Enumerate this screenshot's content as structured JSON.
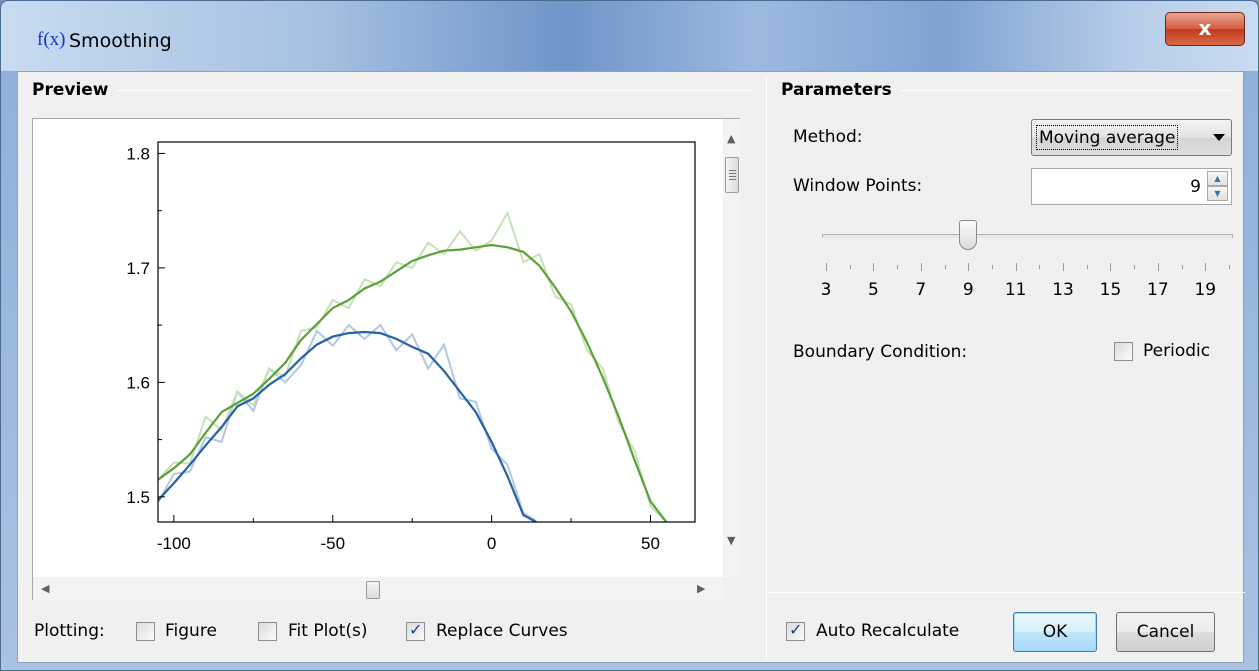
{
  "window": {
    "icon": "f(x)",
    "title": "Smoothing",
    "close": "x"
  },
  "preview": {
    "title": "Preview"
  },
  "chart_data": {
    "type": "line",
    "xlim": [
      -105,
      64
    ],
    "ylim": [
      1.478,
      1.81
    ],
    "x_ticks": [
      -100,
      -50,
      0,
      50
    ],
    "x_tick_labels": [
      "-100",
      "-50",
      "0",
      "50"
    ],
    "y_ticks": [
      1.5,
      1.6,
      1.7,
      1.8
    ],
    "y_tick_labels": [
      "1.5",
      "1.6",
      "1.7",
      "1.8"
    ],
    "series": [
      {
        "color": "#2461a8",
        "raw_color": "#b3c7df",
        "x": [
          -105,
          -100,
          -95,
          -90,
          -85,
          -80,
          -75,
          -70,
          -65,
          -60,
          -55,
          -50,
          -45,
          -40,
          -35,
          -30,
          -25,
          -20,
          -15,
          -10,
          -5,
          0,
          5,
          10,
          14
        ],
        "smoothed": [
          1.497,
          1.512,
          1.528,
          1.545,
          1.561,
          1.579,
          1.586,
          1.598,
          1.607,
          1.621,
          1.633,
          1.64,
          1.643,
          1.644,
          1.643,
          1.638,
          1.631,
          1.625,
          1.61,
          1.592,
          1.574,
          1.548,
          1.518,
          1.484,
          1.478
        ],
        "raw": [
          1.495,
          1.52,
          1.522,
          1.552,
          1.548,
          1.592,
          1.575,
          1.612,
          1.6,
          1.615,
          1.645,
          1.632,
          1.65,
          1.638,
          1.65,
          1.628,
          1.642,
          1.612,
          1.633,
          1.586,
          1.583,
          1.542,
          1.528,
          1.486,
          1.479
        ]
      },
      {
        "color": "#5aa238",
        "raw_color": "#c6e1b7",
        "x": [
          -105,
          -100,
          -95,
          -90,
          -85,
          -80,
          -75,
          -70,
          -65,
          -60,
          -55,
          -50,
          -45,
          -40,
          -35,
          -30,
          -25,
          -20,
          -15,
          -10,
          -5,
          0,
          5,
          10,
          15,
          20,
          25,
          30,
          35,
          40,
          45,
          50,
          55
        ],
        "smoothed": [
          1.515,
          1.525,
          1.537,
          1.556,
          1.574,
          1.582,
          1.59,
          1.603,
          1.617,
          1.637,
          1.651,
          1.665,
          1.672,
          1.682,
          1.688,
          1.697,
          1.706,
          1.711,
          1.715,
          1.716,
          1.718,
          1.72,
          1.718,
          1.714,
          1.702,
          1.683,
          1.662,
          1.635,
          1.604,
          1.57,
          1.532,
          1.496,
          1.478
        ],
        "raw": [
          1.515,
          1.53,
          1.529,
          1.57,
          1.558,
          1.592,
          1.58,
          1.612,
          1.605,
          1.645,
          1.648,
          1.672,
          1.665,
          1.69,
          1.684,
          1.705,
          1.7,
          1.722,
          1.712,
          1.732,
          1.715,
          1.724,
          1.748,
          1.705,
          1.712,
          1.675,
          1.668,
          1.628,
          1.612,
          1.565,
          1.54,
          1.492,
          1.478
        ]
      }
    ]
  },
  "plotting": {
    "label": "Plotting:",
    "figure": {
      "label": "Figure",
      "checked": false
    },
    "fit_plots": {
      "label": "Fit Plot(s)",
      "checked": false
    },
    "replace_curves": {
      "label": "Replace Curves",
      "checked": true
    }
  },
  "parameters": {
    "title": "Parameters",
    "method_label": "Method:",
    "method_value": "Moving average",
    "window_points_label": "Window Points:",
    "window_points_value": "9",
    "slider": {
      "min": 3,
      "max": 20,
      "value": 9,
      "labels": [
        "3",
        "5",
        "7",
        "9",
        "11",
        "13",
        "15",
        "17",
        "19"
      ]
    },
    "boundary_label": "Boundary Condition:",
    "periodic": {
      "label": "Periodic",
      "checked": false
    }
  },
  "footer": {
    "auto_recalculate": {
      "label": "Auto Recalculate",
      "checked": true
    },
    "ok_label": "OK",
    "cancel_label": "Cancel"
  },
  "colors": {
    "title_icon": "#1633c6",
    "close_button": "#c94a2c",
    "panel": "#f0f0f0"
  }
}
